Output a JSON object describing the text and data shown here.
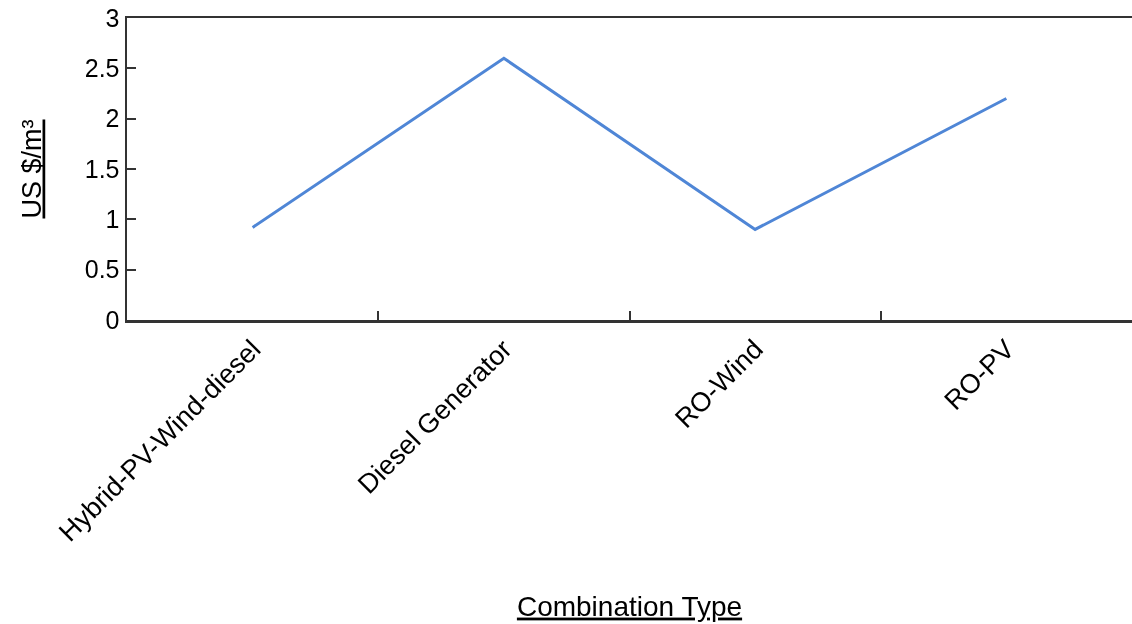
{
  "chart_data": {
    "type": "line",
    "categories": [
      "Hybrid-PV-Wind-diesel",
      "Diesel Generator",
      "RO-Wind",
      "RO-PV"
    ],
    "values": [
      0.92,
      2.6,
      0.9,
      2.2
    ],
    "color": "#4f86d6",
    "xlabel": "Combination Type",
    "ylabel": "US $/m³",
    "ylim": [
      0,
      3
    ],
    "yticks": [
      0,
      0.5,
      1,
      1.5,
      2,
      2.5,
      3
    ],
    "grid": false,
    "marker": "none",
    "line_style": "solid"
  }
}
